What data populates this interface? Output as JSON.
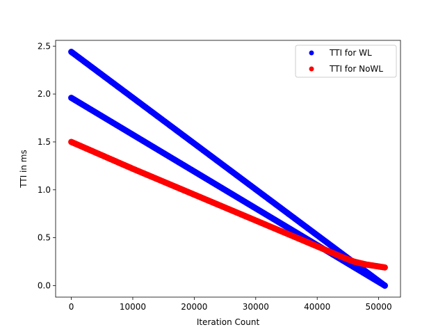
{
  "chart_data": {
    "type": "scatter",
    "title": "",
    "xlabel": "Iteration Count",
    "ylabel": "TTI in ms",
    "xlim": [
      -2550,
      53550
    ],
    "ylim": [
      -0.12,
      2.56
    ],
    "x_ticks": [
      0,
      10000,
      20000,
      30000,
      40000,
      50000
    ],
    "x_tick_labels": [
      "0",
      "10000",
      "20000",
      "30000",
      "40000",
      "50000"
    ],
    "y_ticks": [
      0.0,
      0.5,
      1.0,
      1.5,
      2.0,
      2.5
    ],
    "y_tick_labels": [
      "0.0",
      "0.5",
      "1.0",
      "1.5",
      "2.0",
      "2.5"
    ],
    "grid": false,
    "legend_position": "top-right",
    "series": [
      {
        "name": "TTI for WL",
        "color": "#0000ff",
        "marker": "circle",
        "segments": [
          {
            "x": [
              0,
              51000
            ],
            "y": [
              2.44,
              0.0
            ]
          },
          {
            "x": [
              0,
              51000
            ],
            "y": [
              1.96,
              0.0
            ]
          }
        ]
      },
      {
        "name": "TTI for NoWL",
        "color": "#ff0000",
        "marker": "circle",
        "segments": [
          {
            "x": [
              0,
              10000,
              20000,
              30000,
              40000,
              44000,
              46000,
              48000,
              50000,
              51000
            ],
            "y": [
              1.5,
              1.22,
              0.95,
              0.68,
              0.41,
              0.3,
              0.25,
              0.22,
              0.2,
              0.19
            ]
          }
        ]
      }
    ]
  }
}
